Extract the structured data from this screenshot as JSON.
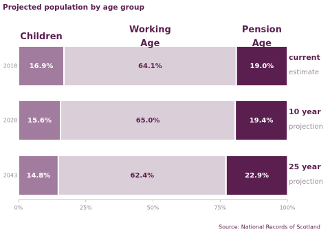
{
  "chart_data": {
    "type": "stacked-bar-horizontal",
    "title": "Projected population by age group",
    "categories": [
      "2018",
      "2028",
      "2043"
    ],
    "series": [
      {
        "name": "Children",
        "color": "#a27c9e",
        "label_color": "#ffffff",
        "values": [
          16.9,
          15.6,
          14.8
        ],
        "value_labels": [
          "16.9%",
          "15.6%",
          "14.8%"
        ]
      },
      {
        "name": "Working Age",
        "color": "#dacfd9",
        "label_color": "#5a1e4f",
        "values": [
          64.1,
          65.0,
          62.4
        ],
        "value_labels": [
          "64.1%",
          "65.0%",
          "62.4%"
        ]
      },
      {
        "name": "Pension Age",
        "color": "#5a1e4f",
        "label_color": "#ffffff",
        "values": [
          19.0,
          19.4,
          22.9
        ],
        "value_labels": [
          "19.0%",
          "19.4%",
          "22.9%"
        ]
      }
    ],
    "row_notes": [
      [
        "current",
        "estimate"
      ],
      [
        "10 year",
        "projection"
      ],
      [
        "25 year",
        "projection"
      ]
    ],
    "xlim": [
      0,
      100
    ],
    "xticks": [
      {
        "value": 0,
        "label": "0%"
      },
      {
        "value": 25,
        "label": "25%"
      },
      {
        "value": 50,
        "label": "50%"
      },
      {
        "value": 75,
        "label": "75%"
      },
      {
        "value": 100,
        "label": "100%"
      }
    ],
    "source": "Source: National Records of Scotland"
  }
}
